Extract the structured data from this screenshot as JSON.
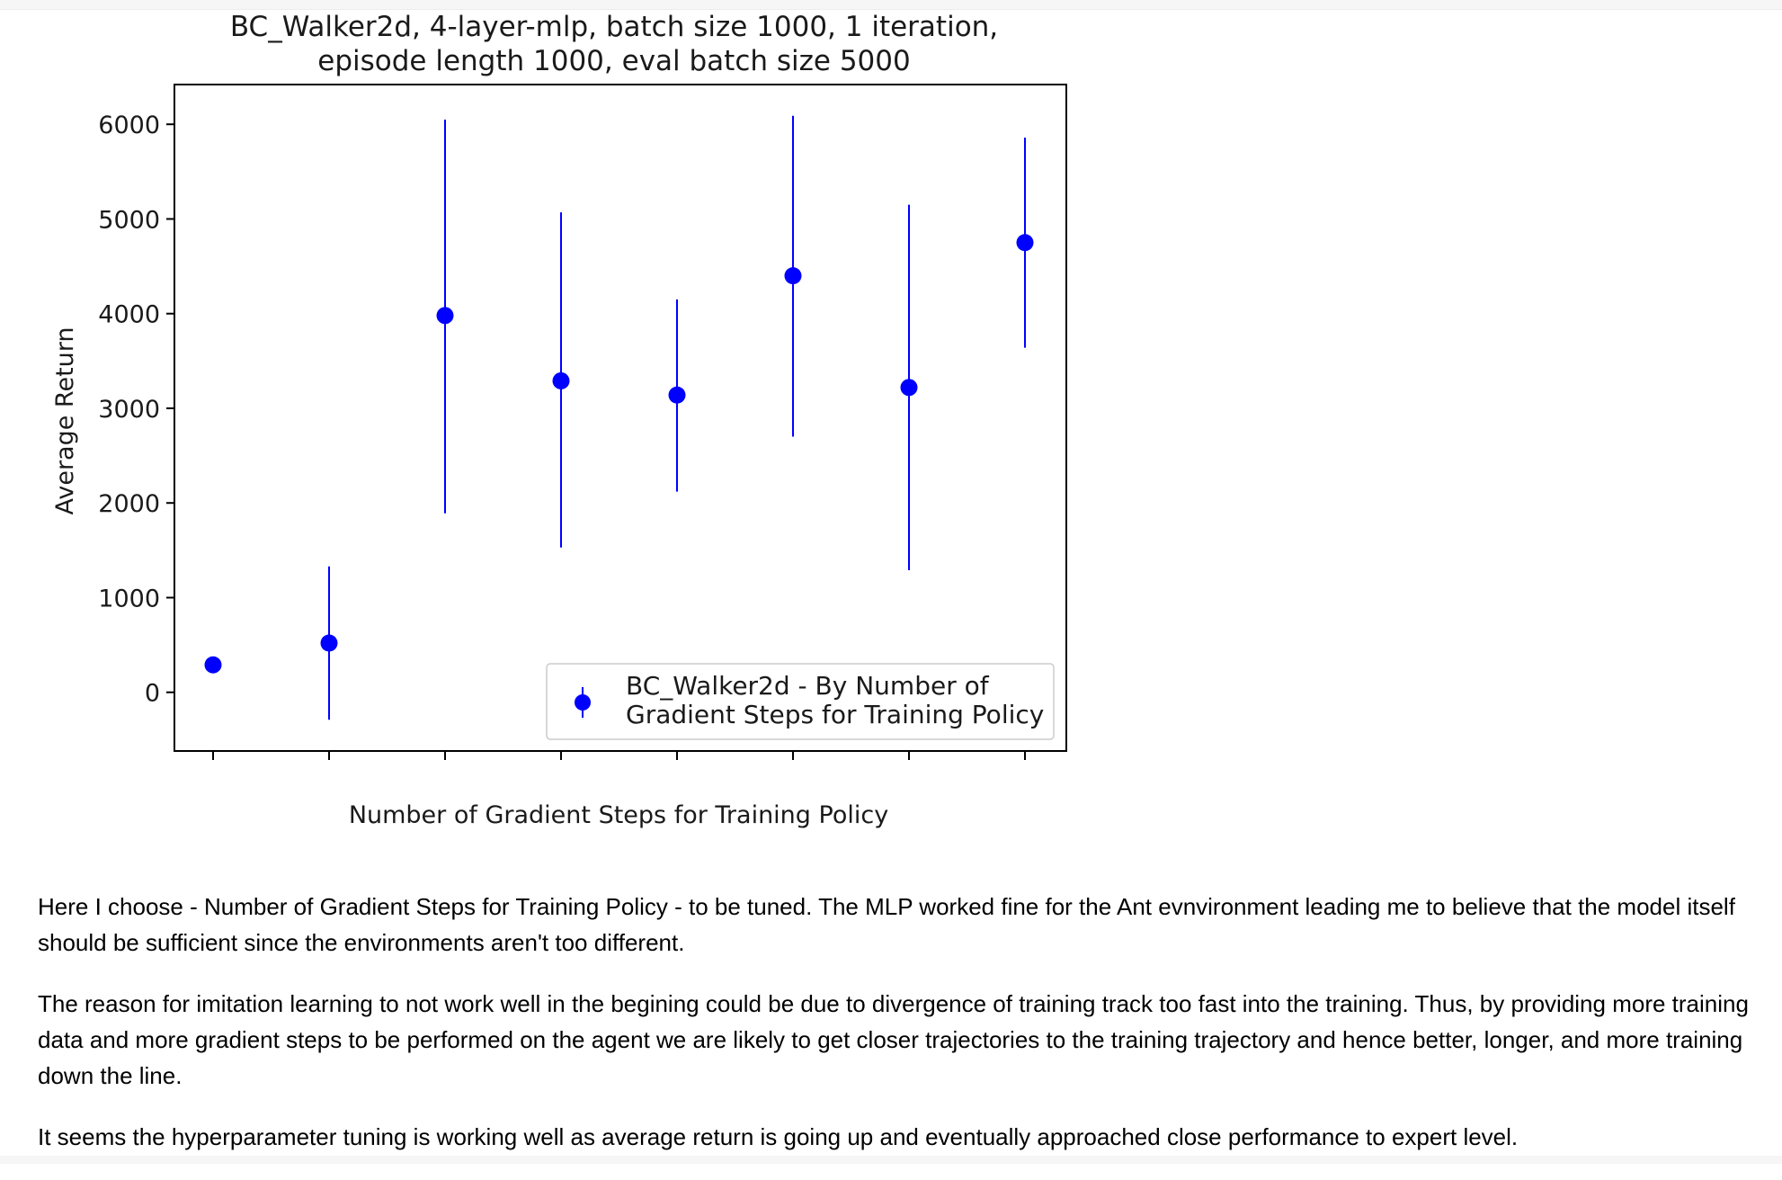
{
  "chart_data": {
    "type": "scatter",
    "title_lines": [
      "BC_Walker2d, 4-layer-mlp, batch size 1000, 1 iteration,",
      "episode length 1000, eval batch size 5000"
    ],
    "xlabel": "Number of Gradient Steps for Training Policy",
    "ylabel": "Average Return",
    "ylim": [
      -620,
      6420
    ],
    "yticks": [
      0,
      1000,
      2000,
      3000,
      4000,
      5000,
      6000
    ],
    "x_tick_count": 8,
    "x_tick_labels_shown": false,
    "grid": false,
    "legend": {
      "placement": "lower-right",
      "lines": [
        "BC_Walker2d - By Number of",
        "Gradient Steps for Training Policy"
      ]
    },
    "series": [
      {
        "color": "#0000ff",
        "points": [
          {
            "x": 1,
            "y": 290,
            "err_low": 290,
            "err_high": 290
          },
          {
            "x": 2,
            "y": 520,
            "err_low": -290,
            "err_high": 1330
          },
          {
            "x": 3,
            "y": 3980,
            "err_low": 1890,
            "err_high": 6050
          },
          {
            "x": 4,
            "y": 3290,
            "err_low": 1530,
            "err_high": 5070
          },
          {
            "x": 5,
            "y": 3140,
            "err_low": 2120,
            "err_high": 4150
          },
          {
            "x": 6,
            "y": 4400,
            "err_low": 2700,
            "err_high": 6090
          },
          {
            "x": 7,
            "y": 3220,
            "err_low": 1290,
            "err_high": 5150
          },
          {
            "x": 8,
            "y": 4750,
            "err_low": 3640,
            "err_high": 5860
          }
        ]
      }
    ]
  },
  "paragraphs": [
    "Here I choose - Number of Gradient Steps for Training Policy - to be tuned. The MLP worked fine for the Ant evnvironment leading me to believe that the model itself should be sufficient since the environments aren't too different.",
    "The reason for imitation learning to not work well in the begining could be due to divergence of training track too fast into the training. Thus, by providing more training data and more gradient steps to be performed on the agent we are likely to get closer trajectories to the training trajectory and hence better, longer, and more training down the line.",
    "It seems the hyperparameter tuning is working well as average return is going up and eventually approached close performance to expert level."
  ]
}
